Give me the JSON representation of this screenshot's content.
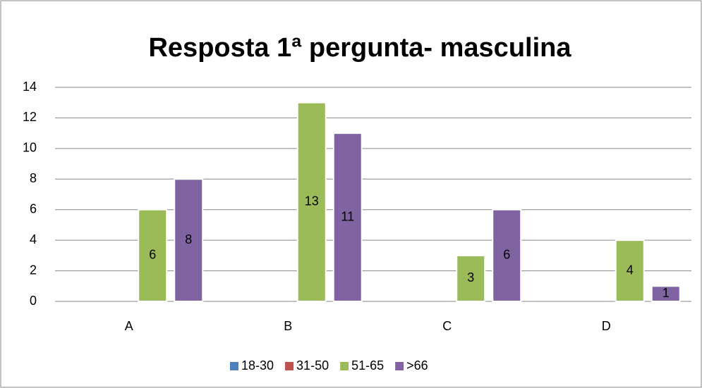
{
  "chart_data": {
    "type": "bar",
    "title": "Resposta 1ª pergunta- masculina",
    "categories": [
      "A",
      "B",
      "C",
      "D"
    ],
    "series": [
      {
        "name": "18-30",
        "color": "#4f81bd",
        "values": [
          null,
          null,
          null,
          null
        ]
      },
      {
        "name": "31-50",
        "color": "#c0504d",
        "values": [
          null,
          null,
          null,
          null
        ]
      },
      {
        "name": "51-65",
        "color": "#9bbb59",
        "values": [
          6,
          13,
          3,
          4
        ]
      },
      {
        "name": ">66",
        "color": "#8064a2",
        "values": [
          8,
          11,
          6,
          1
        ]
      }
    ],
    "ylim": [
      0,
      14
    ],
    "yticks": [
      0,
      2,
      4,
      6,
      8,
      10,
      12,
      14
    ],
    "grid": true,
    "legend": "bottom"
  }
}
